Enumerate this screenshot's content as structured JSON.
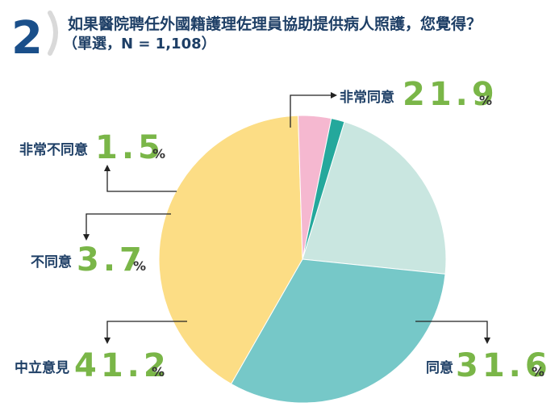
{
  "question": {
    "number": "2",
    "text": "如果醫院聘任外國籍護理佐理員協助提供病人照護，您覺得？",
    "subtext": "（單選，N = 1,108）"
  },
  "colors": {
    "question_number": "#1a4f8a",
    "bracket": "#d9d9d9",
    "label_text": "#1e3f66",
    "value_text": "#7ab648",
    "connector": "#222222"
  },
  "chart_data": {
    "type": "pie",
    "title": "如果醫院聘任外國籍護理佐理員協助提供病人照護，您覺得？",
    "subtitle": "（單選，N = 1,108）",
    "unit": "%",
    "slices": [
      {
        "label": "非常同意",
        "value": 21.9,
        "display": "21.9",
        "color": "#c9e6e0"
      },
      {
        "label": "同意",
        "value": 31.6,
        "display": "31.6",
        "color": "#76c8c8"
      },
      {
        "label": "中立意見",
        "value": 41.2,
        "display": "41.2",
        "color": "#fcdd85"
      },
      {
        "label": "不同意",
        "value": 3.7,
        "display": "3.7",
        "color": "#f5b8d0"
      },
      {
        "label": "非常不同意",
        "value": 1.5,
        "display": "1.5",
        "color": "#24a89c"
      }
    ]
  }
}
